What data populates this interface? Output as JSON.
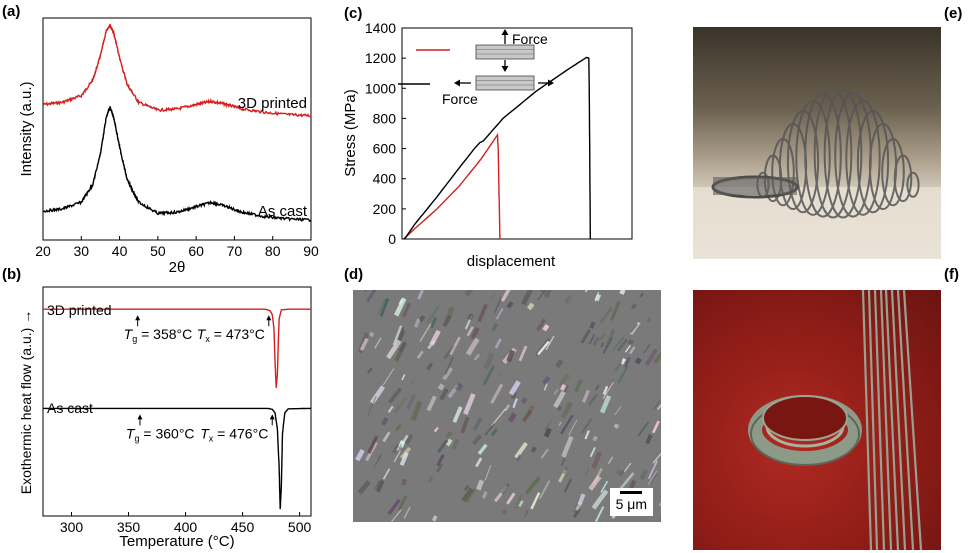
{
  "panel_labels": {
    "a": "(a)",
    "b": "(b)",
    "c": "(c)",
    "d": "(d)",
    "e": "(e)",
    "f": "(f)"
  },
  "chart_data": [
    {
      "id": "a",
      "type": "line",
      "title": "",
      "xlabel": "2θ",
      "ylabel": "Intensity (a.u.)",
      "xlim": [
        20,
        90
      ],
      "xticks": [
        20,
        30,
        40,
        50,
        60,
        70,
        80,
        90
      ],
      "series": [
        {
          "name": "3D printed",
          "color": "#d42020",
          "x": [
            20,
            25,
            30,
            33,
            35,
            36.5,
            37.5,
            38.5,
            40,
            42,
            45,
            50,
            55,
            60,
            64,
            68,
            72,
            78,
            84,
            90
          ],
          "y": [
            0.61,
            0.62,
            0.65,
            0.72,
            0.83,
            0.94,
            0.97,
            0.93,
            0.82,
            0.7,
            0.62,
            0.585,
            0.59,
            0.61,
            0.625,
            0.61,
            0.59,
            0.575,
            0.565,
            0.56
          ]
        },
        {
          "name": "As cast",
          "color": "#000000",
          "x": [
            20,
            25,
            30,
            33,
            35,
            36.5,
            37.5,
            38.5,
            40,
            42,
            45,
            50,
            55,
            60,
            64,
            68,
            72,
            78,
            84,
            90
          ],
          "y": [
            0.13,
            0.14,
            0.17,
            0.25,
            0.39,
            0.55,
            0.6,
            0.55,
            0.42,
            0.27,
            0.17,
            0.12,
            0.125,
            0.15,
            0.17,
            0.15,
            0.125,
            0.105,
            0.095,
            0.09
          ]
        }
      ]
    },
    {
      "id": "b",
      "type": "line",
      "title": "",
      "xlabel": "Temperature (°C)",
      "ylabel": "Exothermic heat flow (a.u.) →",
      "xlim": [
        275,
        510
      ],
      "xticks": [
        300,
        350,
        400,
        450,
        500
      ],
      "series": [
        {
          "name": "3D printed",
          "color": "#d42020",
          "x": [
            275,
            450,
            470,
            474,
            476,
            477.5,
            478.5,
            479.5,
            480.5,
            482,
            484,
            490,
            510
          ],
          "y": [
            0.903,
            0.903,
            0.903,
            0.897,
            0.88,
            0.82,
            0.67,
            0.56,
            0.62,
            0.86,
            0.9,
            0.903,
            0.903
          ]
        },
        {
          "name": "As cast",
          "color": "#000000",
          "x": [
            275,
            450,
            472,
            476,
            478.5,
            480.5,
            482,
            483,
            484,
            485,
            487,
            490,
            510
          ],
          "y": [
            0.47,
            0.47,
            0.47,
            0.466,
            0.45,
            0.38,
            0.22,
            0.03,
            0.13,
            0.36,
            0.45,
            0.468,
            0.47
          ]
        }
      ],
      "annotations": [
        {
          "series": "3D printed",
          "tg_sym": "T",
          "tg_sub": "g",
          "tg_text": " = 358°C",
          "tg_value": 358,
          "tx_sym": "T",
          "tx_sub": "x",
          "tx_text": " = 473°C",
          "tx_value": 473
        },
        {
          "series": "As cast",
          "tg_sym": "T",
          "tg_sub": "g",
          "tg_text": " = 360°C",
          "tg_value": 360,
          "tx_sym": "T",
          "tx_sub": "x",
          "tx_text": " = 476°C",
          "tx_value": 476
        }
      ]
    },
    {
      "id": "c",
      "type": "line",
      "title": "",
      "xlabel": "displacement",
      "ylabel": "Stress (MPa)",
      "xlim": [
        0,
        1
      ],
      "ylim": [
        0,
        1400
      ],
      "yticks": [
        0,
        200,
        400,
        600,
        800,
        1000,
        1200,
        1400
      ],
      "series": [
        {
          "name": "",
          "color": "#d42020",
          "x": [
            0,
            0.01,
            0.05,
            0.15,
            0.25,
            0.35,
            0.42,
            0.425,
            0.428,
            0.432,
            0.436
          ],
          "y": [
            0,
            15,
            70,
            200,
            350,
            530,
            680,
            690,
            600,
            300,
            0
          ]
        },
        {
          "name": "",
          "color": "#000000",
          "x": [
            0,
            0.01,
            0.05,
            0.15,
            0.25,
            0.32,
            0.345,
            0.36,
            0.45,
            0.6,
            0.75,
            0.83,
            0.84,
            0.842,
            0.847
          ],
          "y": [
            0,
            15,
            100,
            280,
            470,
            600,
            640,
            650,
            800,
            980,
            1130,
            1205,
            1200,
            1000,
            0
          ]
        }
      ],
      "legend": {
        "force_top": "Force",
        "force_bottom": "Force"
      }
    }
  ],
  "panel_d": {
    "scale_bar": "5 μm"
  }
}
